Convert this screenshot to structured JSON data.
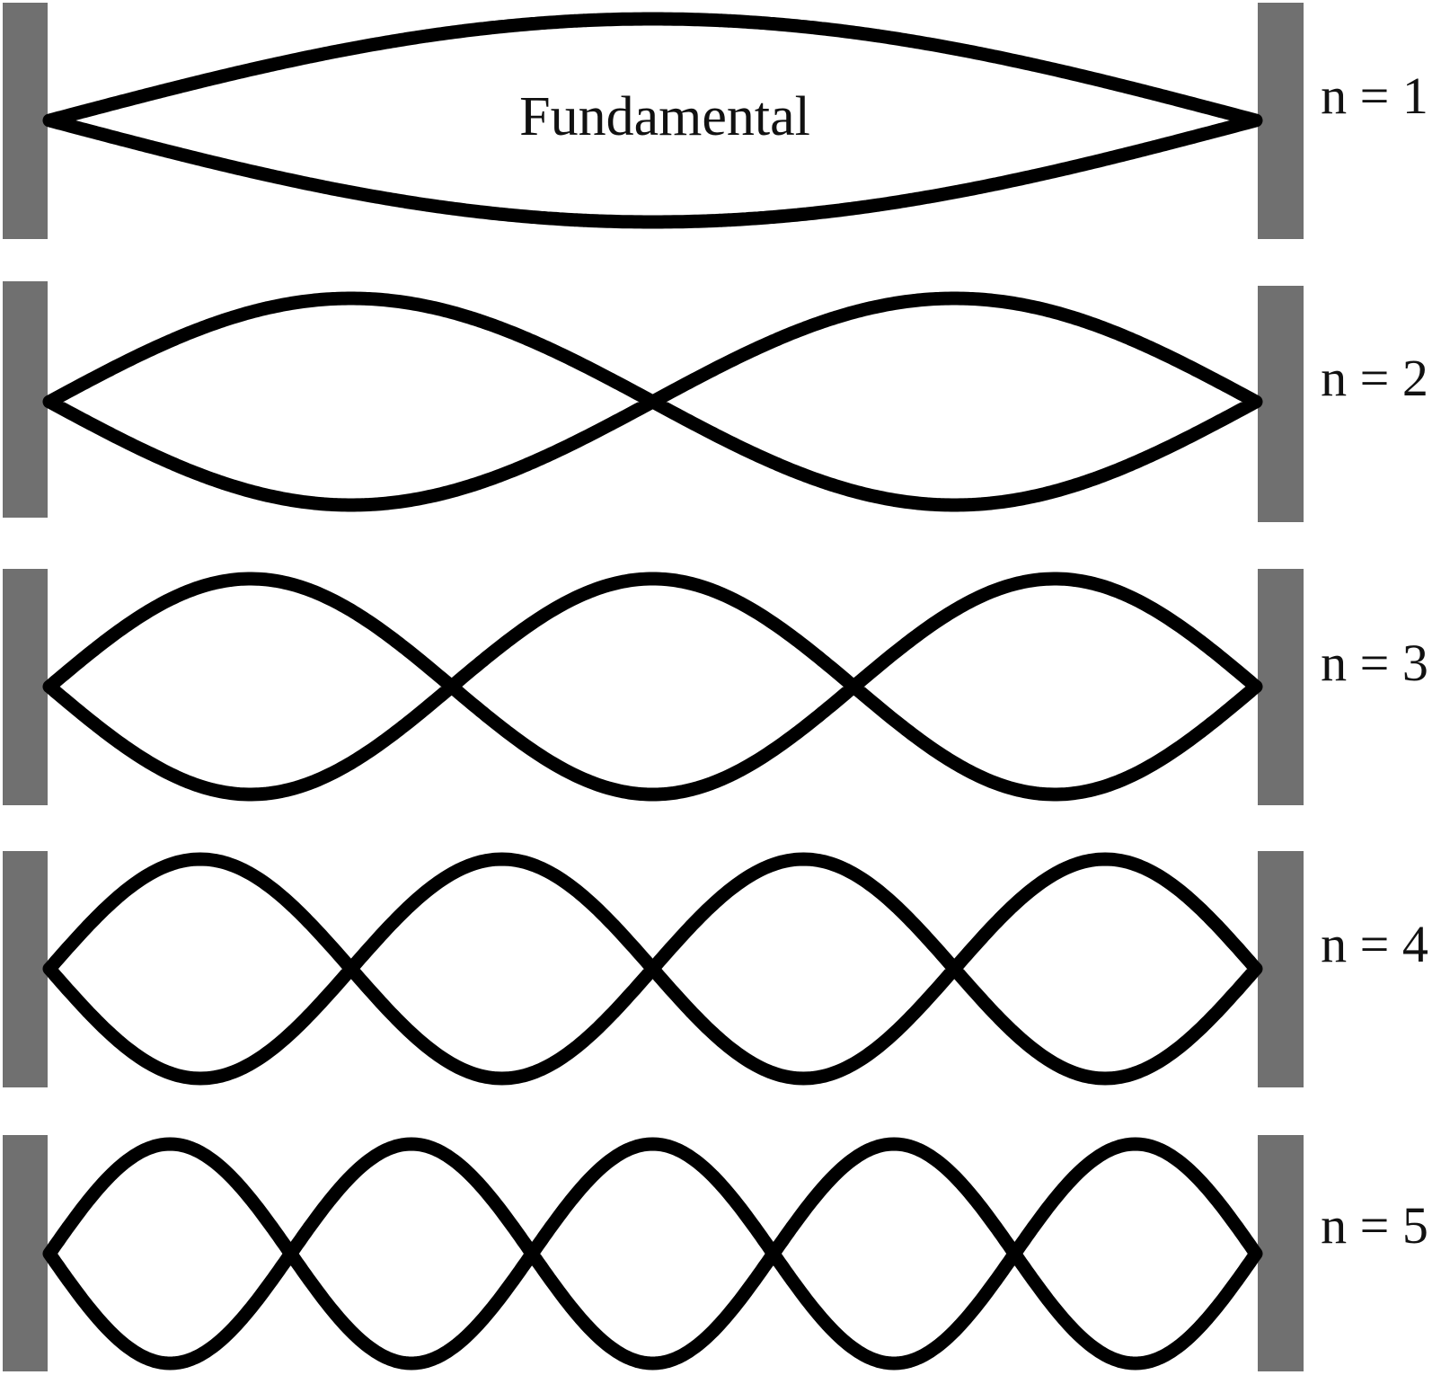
{
  "diagram": {
    "fundamental_label": "Fundamental",
    "modes": [
      {
        "n": 1,
        "label": "n = 1"
      },
      {
        "n": 2,
        "label": "n = 2"
      },
      {
        "n": 3,
        "label": "n = 3"
      },
      {
        "n": 4,
        "label": "n = 4"
      },
      {
        "n": 5,
        "label": "n = 5"
      }
    ],
    "colors": {
      "wall": "#707070",
      "string": "#000000",
      "background": "#ffffff"
    }
  }
}
